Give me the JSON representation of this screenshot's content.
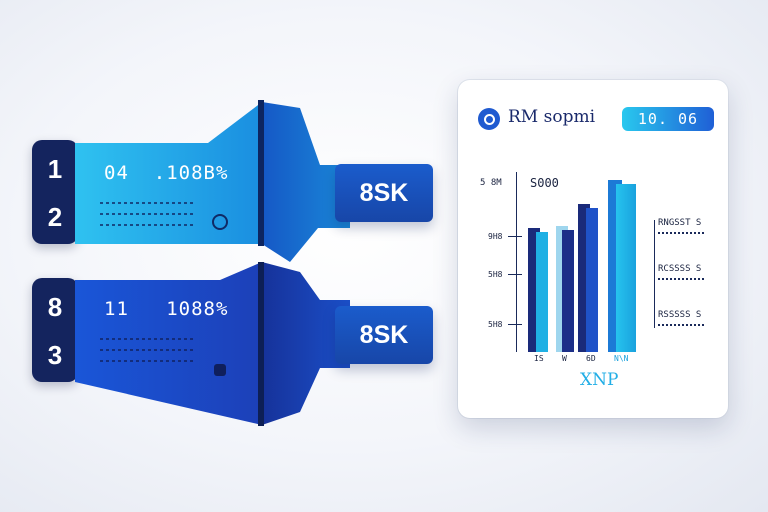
{
  "steps": [
    {
      "label": "1"
    },
    {
      "label": "2"
    },
    {
      "label": "8"
    },
    {
      "label": "3"
    }
  ],
  "banners": [
    {
      "stat": "04  .108B%",
      "value": "8SK",
      "icon": "search-icon"
    },
    {
      "stat": "11   1088%",
      "value": "8SK",
      "icon": "tag-icon"
    }
  ],
  "card": {
    "brand_title": "RM sopmi",
    "badge": "10. 06",
    "y_label": "5 8M",
    "top_value": "S000",
    "y_ticks": [
      "9H8",
      "5H8",
      "5H8"
    ],
    "x_labels": [
      "IS",
      "W",
      "6D",
      "N\\N"
    ],
    "right_labels": [
      "RNGSST S",
      "RCSSSS S",
      "RSSSSS S"
    ],
    "footer": "XNP"
  },
  "colors": {
    "navy": "#14245e",
    "royal": "#1a4fc4",
    "cyan": "#22b8ea",
    "card_bg": "#ffffff"
  }
}
